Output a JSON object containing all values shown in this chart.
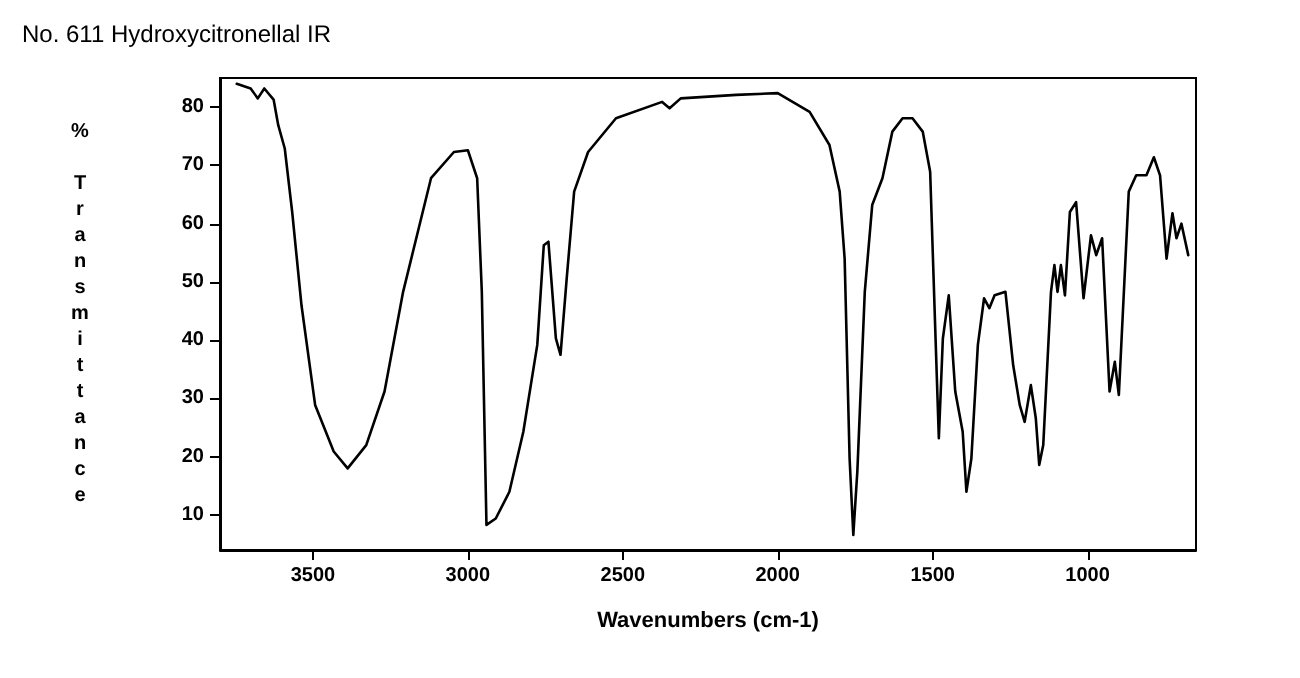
{
  "chart_data": {
    "type": "line",
    "title": "No. 611 Hydroxycitronellal IR",
    "xlabel": "Wavenumbers (cm-1)",
    "ylabel": "% Transmittance",
    "x": [
      3746,
      3701,
      3678,
      3657,
      3627,
      3612,
      3591,
      3567,
      3537,
      3493,
      3433,
      3388,
      3328,
      3269,
      3209,
      3119,
      3045,
      3000,
      2970,
      2955,
      2940,
      2910,
      2866,
      2821,
      2776,
      2755,
      2740,
      2716,
      2701,
      2681,
      2657,
      2612,
      2522,
      2373,
      2349,
      2313,
      2134,
      2000,
      1897,
      1833,
      1800,
      1784,
      1768,
      1756,
      1743,
      1719,
      1695,
      1662,
      1630,
      1597,
      1565,
      1532,
      1508,
      1492,
      1480,
      1467,
      1448,
      1427,
      1403,
      1391,
      1375,
      1354,
      1334,
      1317,
      1300,
      1265,
      1240,
      1219,
      1203,
      1183,
      1167,
      1156,
      1143,
      1118,
      1107,
      1097,
      1086,
      1073,
      1057,
      1037,
      1013,
      989,
      972,
      953,
      929,
      912,
      899,
      867,
      843,
      810,
      786,
      766,
      745,
      726,
      713,
      697,
      675
    ],
    "series": [
      {
        "color": "#000000",
        "values": [
          84.0,
          83.2,
          81.5,
          83.2,
          81.3,
          76.9,
          72.9,
          62.0,
          46.0,
          28.9,
          20.9,
          18.0,
          22.0,
          31.2,
          48.3,
          67.8,
          72.3,
          72.6,
          67.8,
          48.3,
          8.3,
          9.4,
          14.0,
          24.3,
          39.2,
          56.3,
          56.9,
          40.3,
          37.5,
          50.6,
          65.5,
          72.3,
          78.1,
          80.9,
          79.8,
          81.5,
          82.1,
          82.4,
          79.2,
          73.5,
          65.5,
          54.0,
          19.7,
          6.6,
          17.5,
          48.3,
          63.2,
          67.8,
          75.8,
          78.1,
          78.1,
          75.8,
          68.9,
          42.6,
          23.2,
          40.3,
          47.7,
          31.2,
          24.3,
          14.0,
          19.7,
          39.2,
          47.2,
          45.5,
          47.7,
          48.3,
          35.7,
          28.9,
          26.0,
          32.3,
          26.6,
          18.6,
          22.0,
          48.3,
          52.9,
          48.3,
          52.9,
          47.7,
          62.0,
          63.7,
          47.2,
          58.0,
          54.6,
          57.5,
          31.2,
          36.3,
          30.6,
          65.5,
          68.3,
          68.3,
          71.4,
          68.3,
          54.0,
          61.8,
          57.5,
          60.0,
          54.6
        ]
      }
    ],
    "xlim": [
      3800,
      650
    ],
    "xticks": [
      3500,
      3000,
      2500,
      2000,
      1500,
      1000
    ],
    "ylim": [
      4,
      85
    ],
    "yticks": [
      10,
      20,
      30,
      40,
      50,
      60,
      70,
      80
    ],
    "grid": false,
    "marker": "none",
    "line_style": "solid"
  }
}
